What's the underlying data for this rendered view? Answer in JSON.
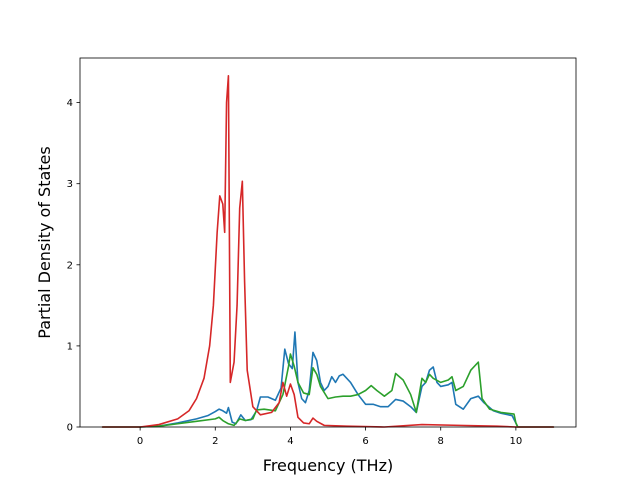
{
  "chart_data": {
    "type": "line",
    "title": "",
    "xlabel": "Frequency (THz)",
    "ylabel": "Partial Density of States",
    "xlim": [
      -1.6,
      11.6
    ],
    "ylim": [
      0,
      4.55
    ],
    "xticks": [
      0,
      2,
      4,
      6,
      8,
      10
    ],
    "yticks": [
      0,
      1,
      2,
      3,
      4
    ],
    "grid": false,
    "legend": "none",
    "series": [
      {
        "color": "#1f77b4",
        "points": [
          [
            -1.0,
            0.0
          ],
          [
            0.0,
            0.0
          ],
          [
            0.5,
            0.01
          ],
          [
            1.0,
            0.05
          ],
          [
            1.5,
            0.1
          ],
          [
            1.8,
            0.14
          ],
          [
            2.0,
            0.19
          ],
          [
            2.1,
            0.22
          ],
          [
            2.2,
            0.2
          ],
          [
            2.3,
            0.17
          ],
          [
            2.35,
            0.24
          ],
          [
            2.45,
            0.06
          ],
          [
            2.55,
            0.04
          ],
          [
            2.68,
            0.15
          ],
          [
            2.8,
            0.08
          ],
          [
            2.95,
            0.09
          ],
          [
            3.1,
            0.2
          ],
          [
            3.2,
            0.37
          ],
          [
            3.4,
            0.37
          ],
          [
            3.6,
            0.33
          ],
          [
            3.75,
            0.48
          ],
          [
            3.85,
            0.96
          ],
          [
            3.95,
            0.78
          ],
          [
            4.05,
            0.72
          ],
          [
            4.12,
            1.17
          ],
          [
            4.2,
            0.55
          ],
          [
            4.3,
            0.35
          ],
          [
            4.4,
            0.3
          ],
          [
            4.5,
            0.45
          ],
          [
            4.6,
            0.92
          ],
          [
            4.7,
            0.82
          ],
          [
            4.8,
            0.55
          ],
          [
            4.9,
            0.45
          ],
          [
            5.0,
            0.5
          ],
          [
            5.1,
            0.62
          ],
          [
            5.2,
            0.55
          ],
          [
            5.3,
            0.63
          ],
          [
            5.4,
            0.65
          ],
          [
            5.6,
            0.55
          ],
          [
            5.8,
            0.4
          ],
          [
            6.0,
            0.28
          ],
          [
            6.2,
            0.28
          ],
          [
            6.4,
            0.25
          ],
          [
            6.6,
            0.25
          ],
          [
            6.8,
            0.34
          ],
          [
            7.0,
            0.32
          ],
          [
            7.2,
            0.25
          ],
          [
            7.35,
            0.18
          ],
          [
            7.5,
            0.5
          ],
          [
            7.6,
            0.55
          ],
          [
            7.7,
            0.7
          ],
          [
            7.8,
            0.74
          ],
          [
            7.9,
            0.55
          ],
          [
            8.0,
            0.5
          ],
          [
            8.2,
            0.52
          ],
          [
            8.3,
            0.55
          ],
          [
            8.4,
            0.28
          ],
          [
            8.6,
            0.22
          ],
          [
            8.8,
            0.35
          ],
          [
            9.0,
            0.38
          ],
          [
            9.15,
            0.3
          ],
          [
            9.4,
            0.2
          ],
          [
            9.6,
            0.17
          ],
          [
            9.9,
            0.14
          ],
          [
            10.0,
            0.05
          ],
          [
            10.05,
            0.0
          ],
          [
            11.0,
            0.0
          ]
        ]
      },
      {
        "color": "#2ca02c",
        "points": [
          [
            -1.0,
            0.0
          ],
          [
            0.0,
            0.0
          ],
          [
            0.5,
            0.01
          ],
          [
            1.0,
            0.04
          ],
          [
            1.5,
            0.07
          ],
          [
            2.0,
            0.1
          ],
          [
            2.1,
            0.12
          ],
          [
            2.2,
            0.08
          ],
          [
            2.35,
            0.04
          ],
          [
            2.5,
            0.02
          ],
          [
            2.65,
            0.1
          ],
          [
            2.8,
            0.08
          ],
          [
            3.0,
            0.1
          ],
          [
            3.1,
            0.21
          ],
          [
            3.3,
            0.22
          ],
          [
            3.6,
            0.2
          ],
          [
            3.8,
            0.4
          ],
          [
            3.95,
            0.75
          ],
          [
            4.0,
            0.9
          ],
          [
            4.1,
            0.75
          ],
          [
            4.2,
            0.55
          ],
          [
            4.35,
            0.42
          ],
          [
            4.5,
            0.4
          ],
          [
            4.6,
            0.73
          ],
          [
            4.7,
            0.65
          ],
          [
            4.8,
            0.5
          ],
          [
            5.0,
            0.35
          ],
          [
            5.2,
            0.37
          ],
          [
            5.4,
            0.38
          ],
          [
            5.6,
            0.38
          ],
          [
            5.8,
            0.4
          ],
          [
            6.0,
            0.45
          ],
          [
            6.15,
            0.51
          ],
          [
            6.3,
            0.45
          ],
          [
            6.5,
            0.38
          ],
          [
            6.7,
            0.45
          ],
          [
            6.8,
            0.66
          ],
          [
            7.0,
            0.58
          ],
          [
            7.2,
            0.4
          ],
          [
            7.35,
            0.18
          ],
          [
            7.5,
            0.6
          ],
          [
            7.6,
            0.55
          ],
          [
            7.7,
            0.65
          ],
          [
            7.8,
            0.6
          ],
          [
            8.0,
            0.55
          ],
          [
            8.2,
            0.58
          ],
          [
            8.3,
            0.62
          ],
          [
            8.4,
            0.45
          ],
          [
            8.6,
            0.5
          ],
          [
            8.8,
            0.7
          ],
          [
            9.0,
            0.8
          ],
          [
            9.1,
            0.35
          ],
          [
            9.3,
            0.22
          ],
          [
            9.6,
            0.18
          ],
          [
            9.95,
            0.16
          ],
          [
            10.0,
            0.05
          ],
          [
            10.05,
            0.0
          ],
          [
            11.0,
            0.0
          ]
        ]
      },
      {
        "color": "#d62728",
        "points": [
          [
            -1.0,
            0.0
          ],
          [
            0.0,
            0.0
          ],
          [
            0.5,
            0.03
          ],
          [
            1.0,
            0.1
          ],
          [
            1.3,
            0.2
          ],
          [
            1.5,
            0.35
          ],
          [
            1.7,
            0.6
          ],
          [
            1.85,
            1.0
          ],
          [
            1.95,
            1.5
          ],
          [
            2.05,
            2.4
          ],
          [
            2.12,
            2.85
          ],
          [
            2.2,
            2.75
          ],
          [
            2.25,
            2.4
          ],
          [
            2.3,
            4.0
          ],
          [
            2.35,
            4.33
          ],
          [
            2.4,
            0.55
          ],
          [
            2.5,
            0.8
          ],
          [
            2.58,
            1.5
          ],
          [
            2.65,
            2.7
          ],
          [
            2.72,
            3.03
          ],
          [
            2.78,
            1.8
          ],
          [
            2.85,
            0.7
          ],
          [
            3.0,
            0.25
          ],
          [
            3.2,
            0.15
          ],
          [
            3.5,
            0.18
          ],
          [
            3.7,
            0.3
          ],
          [
            3.8,
            0.55
          ],
          [
            3.9,
            0.38
          ],
          [
            4.0,
            0.53
          ],
          [
            4.1,
            0.4
          ],
          [
            4.2,
            0.12
          ],
          [
            4.35,
            0.05
          ],
          [
            4.5,
            0.04
          ],
          [
            4.6,
            0.11
          ],
          [
            4.7,
            0.07
          ],
          [
            4.9,
            0.02
          ],
          [
            5.5,
            0.01
          ],
          [
            6.5,
            0.0
          ],
          [
            7.5,
            0.03
          ],
          [
            8.5,
            0.02
          ],
          [
            9.5,
            0.01
          ],
          [
            10.0,
            0.0
          ],
          [
            11.0,
            0.0
          ]
        ]
      }
    ]
  }
}
